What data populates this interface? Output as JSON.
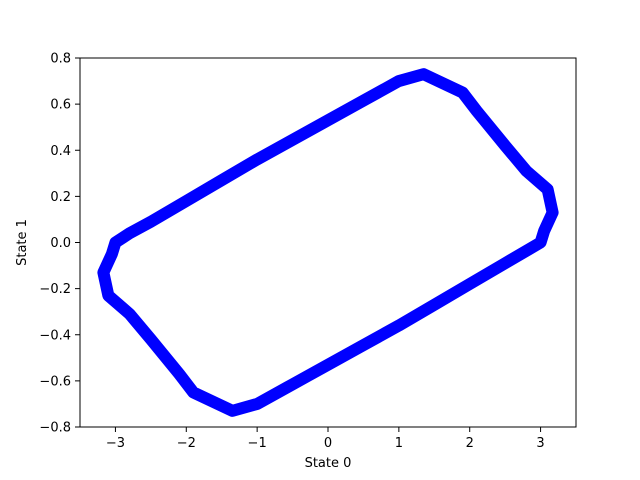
{
  "chart_data": {
    "type": "line",
    "title": "",
    "xlabel": "State 0",
    "ylabel": "State 1",
    "xlim": [
      -3.5,
      3.5
    ],
    "ylim": [
      -0.8,
      0.8
    ],
    "xticks": [
      -3,
      -2,
      -1,
      0,
      1,
      2,
      3
    ],
    "xtick_labels": [
      "−3",
      "−2",
      "−1",
      "0",
      "1",
      "2",
      "3"
    ],
    "yticks": [
      -0.8,
      -0.6,
      -0.4,
      -0.2,
      0.0,
      0.2,
      0.4,
      0.6,
      0.8
    ],
    "ytick_labels": [
      "−0.8",
      "−0.6",
      "−0.4",
      "−0.2",
      "0.0",
      "0.2",
      "0.4",
      "0.6",
      "0.8"
    ],
    "grid": false,
    "legend": "none",
    "series": [
      {
        "color": "#0000ff",
        "x": [
          -3.0,
          -2.8,
          -2.5,
          -2.0,
          -1.5,
          -1.0,
          -0.5,
          0.0,
          0.5,
          1.0,
          1.35,
          1.9,
          2.1,
          2.5,
          2.8,
          3.1,
          3.17,
          3.05,
          3.0,
          2.5,
          2.0,
          1.5,
          1.0,
          0.5,
          0.0,
          -0.5,
          -1.0,
          -1.35,
          -1.9,
          -2.1,
          -2.5,
          -2.8,
          -3.1,
          -3.17,
          -3.05,
          -3.0
        ],
        "y": [
          0.0,
          0.04,
          0.09,
          0.18,
          0.27,
          0.36,
          0.445,
          0.53,
          0.615,
          0.7,
          0.73,
          0.65,
          0.57,
          0.42,
          0.31,
          0.23,
          0.13,
          0.05,
          0.0,
          -0.09,
          -0.18,
          -0.27,
          -0.36,
          -0.445,
          -0.53,
          -0.615,
          -0.7,
          -0.73,
          -0.65,
          -0.57,
          -0.42,
          -0.31,
          -0.23,
          -0.13,
          -0.05,
          0.0
        ]
      }
    ]
  }
}
